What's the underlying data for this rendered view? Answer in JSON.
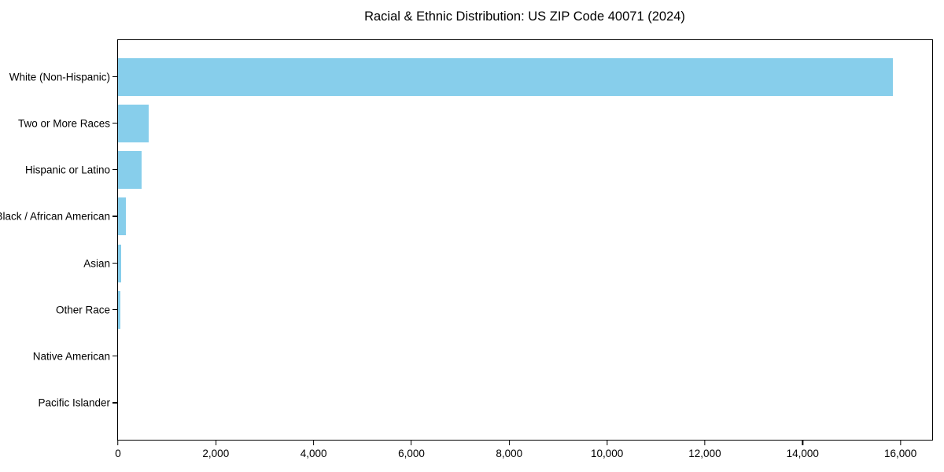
{
  "chart_data": {
    "type": "bar",
    "orientation": "horizontal",
    "title": "Racial & Ethnic Distribution: US ZIP Code 40071 (2024)",
    "categories": [
      "White (Non-Hispanic)",
      "Two or More Races",
      "Hispanic or Latino",
      "Black / African American",
      "Asian",
      "Other Race",
      "Native American",
      "Pacific Islander"
    ],
    "values": [
      15850,
      630,
      480,
      160,
      70,
      45,
      0,
      0
    ],
    "bar_color": "#87CEEB",
    "axis_color": "#000000",
    "text_color": "#000000",
    "xlabel": "",
    "ylabel": "",
    "xlim": [
      0,
      16650
    ],
    "xticks": [
      0,
      2000,
      4000,
      6000,
      8000,
      10000,
      12000,
      14000,
      16000
    ],
    "xtick_labels": [
      "0",
      "2,000",
      "4,000",
      "6,000",
      "8,000",
      "10,000",
      "12,000",
      "14,000",
      "16,000"
    ],
    "grid": false,
    "legend": null
  }
}
